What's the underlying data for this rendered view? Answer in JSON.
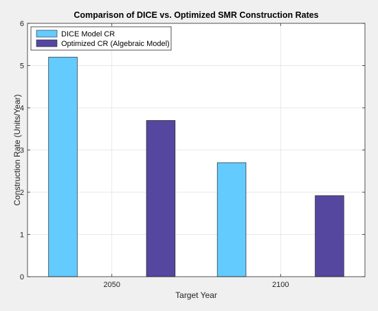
{
  "chart_data": {
    "type": "bar",
    "title": "Comparison of DICE vs. Optimized SMR Construction Rates",
    "xlabel": "Target Year",
    "ylabel": "Construction Rate (Units/Year)",
    "categories": [
      "2050",
      "2100"
    ],
    "series": [
      {
        "name": "DICE Model CR",
        "values": [
          5.2,
          2.7
        ],
        "color": "#63cbfd"
      },
      {
        "name": "Optimized CR (Algebraic Model)",
        "values": [
          3.7,
          1.92
        ],
        "color": "#5547a0"
      }
    ],
    "ylim": [
      0,
      6
    ],
    "yticks": [
      "0",
      "1",
      "2",
      "3",
      "4",
      "5",
      "6"
    ],
    "grid": true,
    "legend_position": "top-left"
  }
}
